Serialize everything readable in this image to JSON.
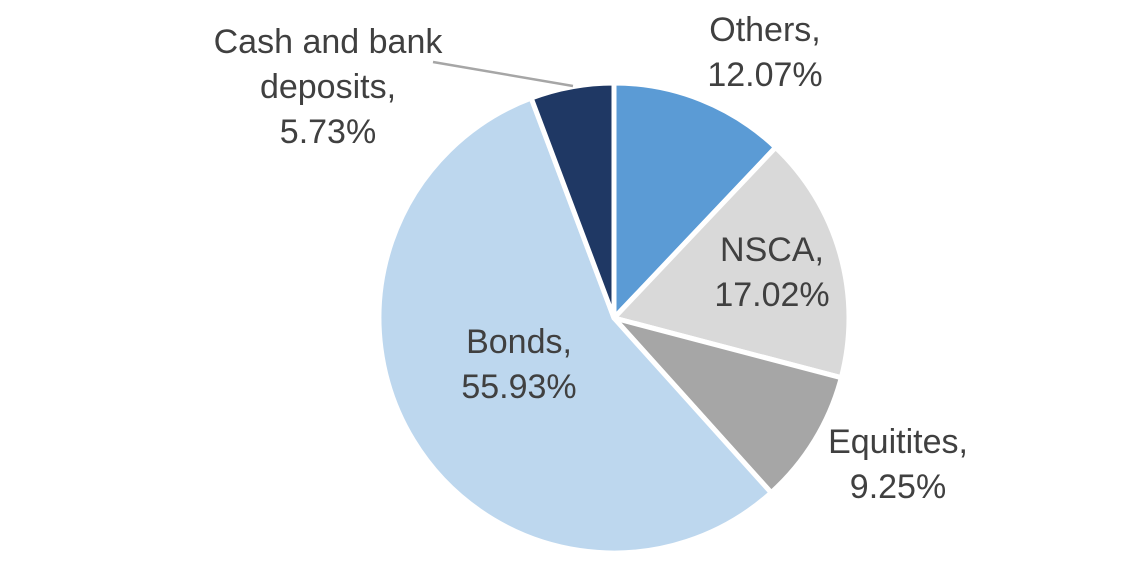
{
  "chart_data": {
    "type": "pie",
    "title": "",
    "legend": "none",
    "start_angle_deg": 0,
    "direction": "clockwise",
    "label_format": "{label}, {value}%",
    "slices": [
      {
        "label": "Others",
        "value": 12.07,
        "color": "#5B9BD5",
        "callout_lines": [
          "Others,",
          "12.07%"
        ],
        "label_placement": "outside"
      },
      {
        "label": "NSCA",
        "value": 17.02,
        "color": "#D9D9D9",
        "callout_lines": [
          "NSCA,",
          "17.02%"
        ],
        "label_placement": "inside"
      },
      {
        "label": "Equitites",
        "value": 9.25,
        "color": "#A6A6A6",
        "callout_lines": [
          "Equitites,",
          "9.25%"
        ],
        "label_placement": "outside"
      },
      {
        "label": "Bonds",
        "value": 55.93,
        "color": "#BDD7EE",
        "callout_lines": [
          "Bonds,",
          "55.93%"
        ],
        "label_placement": "inside"
      },
      {
        "label": "Cash and bank deposits",
        "value": 5.73,
        "color": "#1F3864",
        "callout_lines": [
          "Cash and bank",
          "deposits,",
          "5.73%"
        ],
        "label_placement": "outside-with-leader-line"
      }
    ]
  },
  "colors": {
    "background": "#FFFFFF",
    "slice_border": "#FFFFFF",
    "label_text": "#404040",
    "leader_line": "#A6A6A6"
  }
}
